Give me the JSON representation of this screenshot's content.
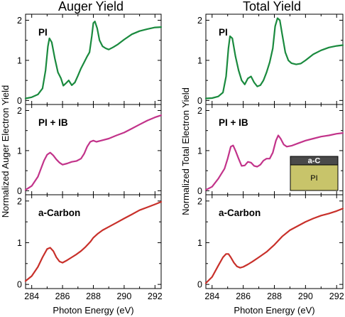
{
  "chart_data": [
    {
      "type": "line",
      "column_title": "Auger Yield",
      "xlabel": "Photon Energy (eV)",
      "ylabel": "Normalized Auger Electron Yield",
      "xlim": [
        283.6,
        292.4
      ],
      "x_ticks": [
        284,
        286,
        288,
        290,
        292
      ],
      "panels": [
        {
          "label": "PI",
          "color": "#1a8a3e",
          "ylim": [
            -0.1,
            2.15
          ],
          "y_ticks": [
            0,
            1,
            2
          ],
          "x": [
            283.6,
            284.0,
            284.4,
            284.7,
            284.9,
            285.05,
            285.15,
            285.3,
            285.5,
            285.7,
            285.9,
            286.05,
            286.2,
            286.4,
            286.6,
            286.8,
            287.0,
            287.2,
            287.4,
            287.6,
            287.75,
            287.9,
            288.0,
            288.1,
            288.25,
            288.4,
            288.6,
            288.8,
            289.0,
            289.3,
            289.6,
            290.0,
            290.5,
            291.0,
            291.5,
            292.0,
            292.4
          ],
          "y": [
            0.05,
            0.08,
            0.15,
            0.3,
            0.75,
            1.35,
            1.55,
            1.45,
            1.05,
            0.7,
            0.55,
            0.37,
            0.42,
            0.5,
            0.38,
            0.45,
            0.62,
            0.8,
            0.95,
            1.1,
            1.2,
            1.6,
            1.93,
            1.97,
            1.8,
            1.5,
            1.35,
            1.3,
            1.27,
            1.33,
            1.4,
            1.52,
            1.65,
            1.73,
            1.78,
            1.82,
            1.83
          ]
        },
        {
          "label": "PI + IB",
          "color": "#c2338a",
          "ylim": [
            -0.1,
            2.15
          ],
          "y_ticks": [
            0,
            1,
            2
          ],
          "x": [
            283.6,
            284.0,
            284.4,
            284.8,
            285.0,
            285.2,
            285.4,
            285.6,
            285.8,
            286.0,
            286.3,
            286.6,
            286.9,
            287.2,
            287.4,
            287.6,
            287.8,
            288.0,
            288.2,
            288.5,
            289.0,
            289.5,
            290.0,
            290.5,
            291.0,
            291.5,
            292.0,
            292.4
          ],
          "y": [
            0.02,
            0.12,
            0.35,
            0.75,
            0.9,
            0.95,
            0.88,
            0.78,
            0.7,
            0.65,
            0.68,
            0.72,
            0.74,
            0.8,
            0.92,
            1.1,
            1.22,
            1.25,
            1.22,
            1.25,
            1.3,
            1.38,
            1.45,
            1.55,
            1.65,
            1.75,
            1.83,
            1.88
          ]
        },
        {
          "label": "a-Carbon",
          "color": "#c8302a",
          "ylim": [
            -0.1,
            2.15
          ],
          "y_ticks": [
            0,
            1,
            2
          ],
          "x": [
            283.6,
            284.0,
            284.4,
            284.7,
            285.0,
            285.2,
            285.4,
            285.6,
            285.8,
            286.0,
            286.3,
            286.6,
            286.9,
            287.2,
            287.5,
            287.8,
            288.0,
            288.3,
            288.6,
            289.0,
            289.5,
            290.0,
            290.5,
            291.0,
            291.5,
            292.0,
            292.4
          ],
          "y": [
            0.08,
            0.2,
            0.42,
            0.65,
            0.85,
            0.88,
            0.8,
            0.65,
            0.55,
            0.52,
            0.58,
            0.65,
            0.72,
            0.8,
            0.9,
            1.02,
            1.12,
            1.22,
            1.3,
            1.38,
            1.48,
            1.58,
            1.68,
            1.78,
            1.85,
            1.92,
            1.98
          ]
        }
      ]
    },
    {
      "type": "line",
      "column_title": "Total Yield",
      "xlabel": "Photon Energy (eV)",
      "ylabel": "Normalized Total Electron Yield",
      "xlim": [
        283.6,
        292.4
      ],
      "x_ticks": [
        284,
        286,
        288,
        290,
        292
      ],
      "panels": [
        {
          "label": "PI",
          "color": "#1a8a3e",
          "ylim": [
            -0.1,
            2.15
          ],
          "y_ticks": [
            0,
            1,
            2
          ],
          "x": [
            283.6,
            284.0,
            284.4,
            284.7,
            284.9,
            285.05,
            285.15,
            285.3,
            285.5,
            285.7,
            285.9,
            286.1,
            286.3,
            286.5,
            286.7,
            286.9,
            287.1,
            287.3,
            287.5,
            287.7,
            287.9,
            288.05,
            288.2,
            288.35,
            288.5,
            288.7,
            288.9,
            289.1,
            289.4,
            289.7,
            290.0,
            290.5,
            291.0,
            291.5,
            292.0,
            292.4
          ],
          "y": [
            0.05,
            0.06,
            0.1,
            0.2,
            0.6,
            1.3,
            1.6,
            1.55,
            1.1,
            0.75,
            0.5,
            0.4,
            0.55,
            0.6,
            0.45,
            0.35,
            0.38,
            0.5,
            0.7,
            0.95,
            1.3,
            1.85,
            2.05,
            2.0,
            1.65,
            1.2,
            1.0,
            0.93,
            0.9,
            0.92,
            1.0,
            1.15,
            1.25,
            1.32,
            1.36,
            1.38
          ]
        },
        {
          "label": "PI + IB",
          "color": "#c2338a",
          "ylim": [
            -0.1,
            2.15
          ],
          "y_ticks": [
            0,
            1,
            2
          ],
          "x": [
            283.6,
            284.0,
            284.4,
            284.8,
            285.0,
            285.2,
            285.35,
            285.5,
            285.7,
            285.9,
            286.1,
            286.3,
            286.5,
            286.7,
            286.9,
            287.1,
            287.3,
            287.5,
            287.7,
            287.9,
            288.1,
            288.25,
            288.4,
            288.6,
            288.8,
            289.1,
            289.5,
            290.0,
            290.5,
            291.0,
            291.5,
            292.0,
            292.4
          ],
          "y": [
            0.02,
            0.1,
            0.3,
            0.55,
            0.8,
            1.1,
            1.13,
            1.0,
            0.8,
            0.62,
            0.63,
            0.72,
            0.7,
            0.62,
            0.6,
            0.65,
            0.75,
            0.8,
            0.8,
            0.95,
            1.25,
            1.38,
            1.3,
            1.15,
            1.1,
            1.12,
            1.18,
            1.25,
            1.3,
            1.35,
            1.38,
            1.42,
            1.44
          ]
        },
        {
          "label": "a-Carbon",
          "color": "#c8302a",
          "ylim": [
            -0.1,
            2.15
          ],
          "y_ticks": [
            0,
            1,
            2
          ],
          "x": [
            283.6,
            284.0,
            284.4,
            284.7,
            284.9,
            285.05,
            285.2,
            285.4,
            285.6,
            285.8,
            286.0,
            286.3,
            286.6,
            287.0,
            287.5,
            288.0,
            288.5,
            289.0,
            289.5,
            290.0,
            290.5,
            291.0,
            291.5,
            292.0,
            292.4
          ],
          "y": [
            0.03,
            0.18,
            0.45,
            0.65,
            0.73,
            0.73,
            0.65,
            0.52,
            0.43,
            0.4,
            0.42,
            0.48,
            0.55,
            0.65,
            0.78,
            0.95,
            1.15,
            1.3,
            1.4,
            1.5,
            1.58,
            1.65,
            1.7,
            1.76,
            1.82
          ]
        }
      ],
      "inset": {
        "top_label": "a-C",
        "bottom_label": "PI",
        "top_color": "#4a4a4a",
        "bottom_color": "#c8c46a"
      }
    }
  ]
}
